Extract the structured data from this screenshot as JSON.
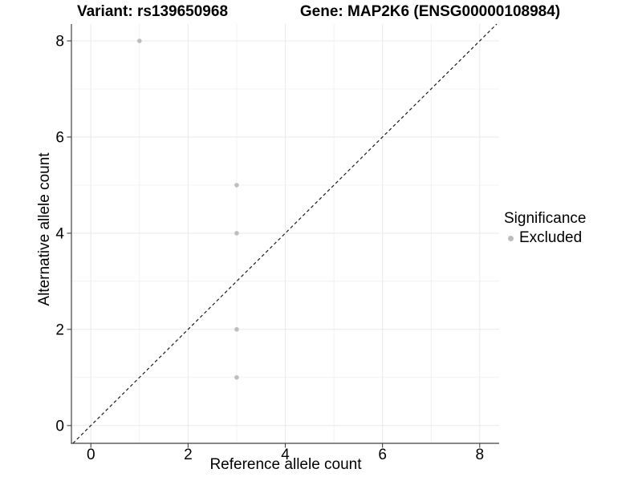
{
  "titles": {
    "left": "Variant: rs139650968",
    "right": "Gene: MAP2K6 (ENSG00000108984)"
  },
  "legend": {
    "title": "Significance",
    "items": [
      {
        "label": "Excluded",
        "color": "#bdbdbd"
      }
    ]
  },
  "colors": {
    "background": "#ffffff",
    "grid_major": "#ebebeb",
    "grid_minor": "#ebebeb",
    "axis_line": "#404040",
    "tick_mark": "#404040",
    "reference_line": "#1a1a1a",
    "point_excluded": "#bdbdbd"
  },
  "chart_data": {
    "type": "scatter",
    "title_left": "Variant: rs139650968",
    "title_right": "Gene: MAP2K6 (ENSG00000108984)",
    "xlabel": "Reference allele count",
    "ylabel": "Alternative allele count",
    "xlim": [
      -0.4,
      8.4
    ],
    "ylim": [
      -0.37,
      8.35
    ],
    "x_ticks": [
      0,
      2,
      4,
      6,
      8
    ],
    "y_ticks": [
      0,
      2,
      4,
      6,
      8
    ],
    "grid_major_every": 2,
    "grid_minor_every": 1,
    "grid": true,
    "legend_position": "right",
    "series": [
      {
        "name": "Excluded",
        "color": "#bdbdbd",
        "points": [
          {
            "x": 1,
            "y": 8
          },
          {
            "x": 3,
            "y": 5
          },
          {
            "x": 3,
            "y": 4
          },
          {
            "x": 3,
            "y": 2
          },
          {
            "x": 3,
            "y": 1
          }
        ]
      }
    ],
    "reference_line": {
      "type": "identity",
      "slope": 1,
      "intercept": 0,
      "style": "dashed"
    }
  }
}
